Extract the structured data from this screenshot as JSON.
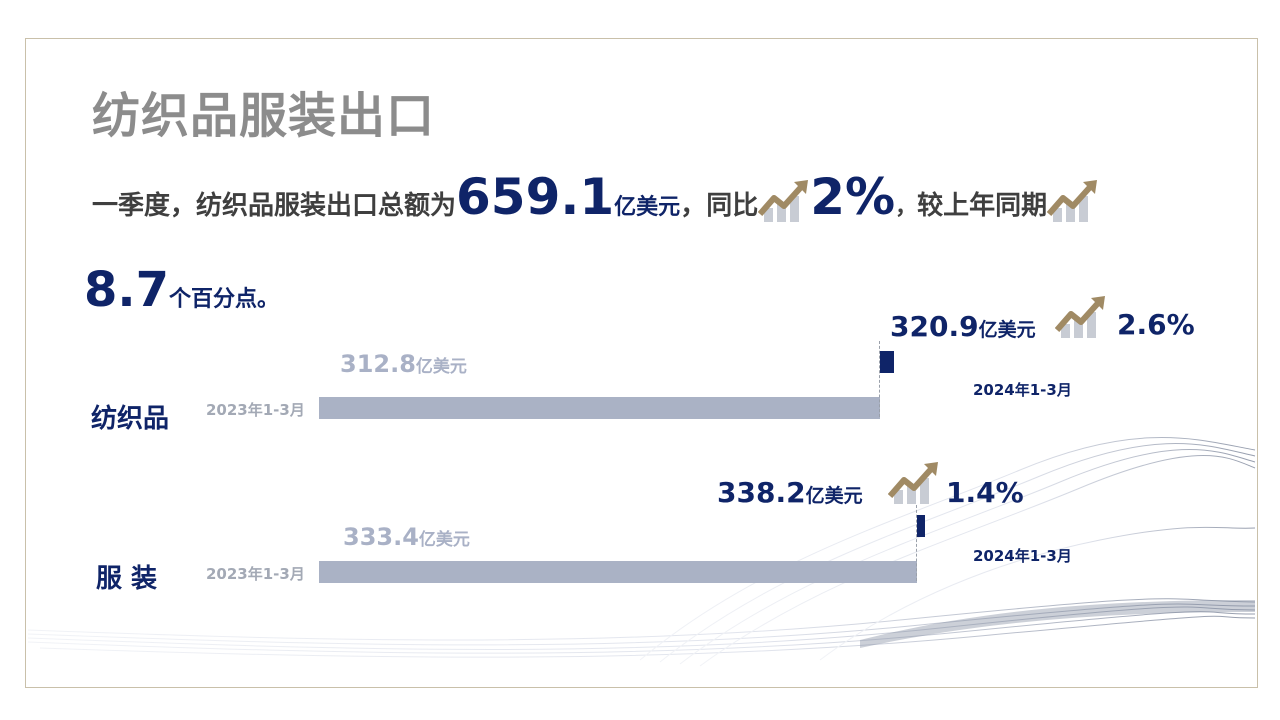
{
  "title": "纺织品服装出口",
  "summary": {
    "prefix": "一季度，纺织品服装出口总额为",
    "total": "659.1",
    "total_unit": "亿美元",
    "mid": "，同比",
    "yoy": "2%",
    "comma": "，",
    "tail": "较上年同期",
    "pp_value": "8.7",
    "pp_tail": "个百分点。"
  },
  "colors": {
    "navy": "#0f2468",
    "grey_bar": "#aab2c5",
    "gold_icon": "#a08a64",
    "title_grey": "#8c8c8c"
  },
  "icons": {
    "trend": "trend-up-icon"
  },
  "chart_data": {
    "type": "bar",
    "orientation": "horizontal",
    "categories": [
      "纺织品",
      "服  装"
    ],
    "series": [
      {
        "name": "2023年1-3月",
        "values": [
          312.8,
          333.4
        ]
      },
      {
        "name": "2024年1-3月",
        "values": [
          320.9,
          338.2
        ]
      }
    ],
    "unit": "亿美元",
    "value_labels": [
      {
        "old": "312.8",
        "new": "320.9",
        "growth": "2.6%"
      },
      {
        "old": "333.4",
        "new": "338.2",
        "growth": "1.4%"
      }
    ],
    "legend": "none"
  }
}
